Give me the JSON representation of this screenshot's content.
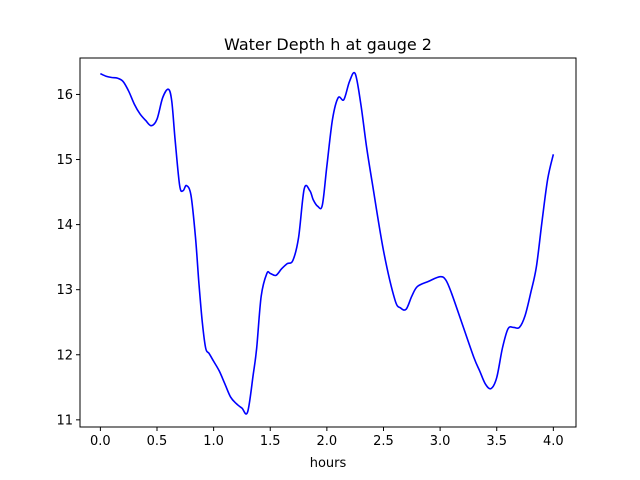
{
  "chart_data": {
    "type": "line",
    "title": "Water Depth h at gauge 2",
    "xlabel": "hours",
    "ylabel": "",
    "xlim": [
      -0.18,
      4.2
    ],
    "ylim": [
      10.89,
      16.56
    ],
    "xticks": [
      0.0,
      0.5,
      1.0,
      1.5,
      2.0,
      2.5,
      3.0,
      3.5,
      4.0
    ],
    "xtick_labels": [
      "0.0",
      "0.5",
      "1.0",
      "1.5",
      "2.0",
      "2.5",
      "3.0",
      "3.5",
      "4.0"
    ],
    "yticks": [
      11,
      12,
      13,
      14,
      15,
      16
    ],
    "ytick_labels": [
      "11",
      "12",
      "13",
      "14",
      "15",
      "16"
    ],
    "grid": false,
    "legend": "none",
    "series": [
      {
        "color": "#0000ff",
        "x": [
          0.0,
          0.05,
          0.1,
          0.15,
          0.2,
          0.25,
          0.3,
          0.35,
          0.4,
          0.45,
          0.5,
          0.55,
          0.6,
          0.63,
          0.66,
          0.7,
          0.73,
          0.76,
          0.8,
          0.84,
          0.87,
          0.9,
          0.93,
          0.96,
          1.0,
          1.05,
          1.1,
          1.15,
          1.2,
          1.25,
          1.3,
          1.35,
          1.38,
          1.42,
          1.47,
          1.5,
          1.55,
          1.6,
          1.65,
          1.7,
          1.75,
          1.8,
          1.85,
          1.88,
          1.92,
          1.96,
          2.0,
          2.05,
          2.1,
          2.15,
          2.2,
          2.25,
          2.3,
          2.35,
          2.4,
          2.5,
          2.6,
          2.65,
          2.7,
          2.75,
          2.8,
          2.9,
          3.0,
          3.05,
          3.1,
          3.2,
          3.3,
          3.35,
          3.4,
          3.45,
          3.5,
          3.55,
          3.6,
          3.65,
          3.7,
          3.75,
          3.8,
          3.85,
          3.9,
          3.95,
          4.0
        ],
        "y": [
          16.32,
          16.28,
          16.26,
          16.25,
          16.2,
          16.05,
          15.85,
          15.7,
          15.6,
          15.52,
          15.62,
          15.95,
          16.08,
          15.9,
          15.3,
          14.6,
          14.52,
          14.6,
          14.45,
          13.8,
          13.1,
          12.5,
          12.1,
          12.02,
          11.9,
          11.75,
          11.55,
          11.35,
          11.25,
          11.18,
          11.12,
          11.7,
          12.1,
          12.9,
          13.25,
          13.25,
          13.22,
          13.32,
          13.4,
          13.45,
          13.8,
          14.55,
          14.52,
          14.38,
          14.28,
          14.3,
          14.9,
          15.62,
          15.95,
          15.92,
          16.2,
          16.32,
          15.85,
          15.2,
          14.65,
          13.6,
          12.85,
          12.72,
          12.7,
          12.9,
          13.05,
          13.13,
          13.2,
          13.15,
          12.95,
          12.45,
          11.95,
          11.75,
          11.55,
          11.48,
          11.65,
          12.1,
          12.4,
          12.42,
          12.42,
          12.6,
          12.95,
          13.35,
          14.05,
          14.7,
          15.08
        ]
      }
    ]
  }
}
